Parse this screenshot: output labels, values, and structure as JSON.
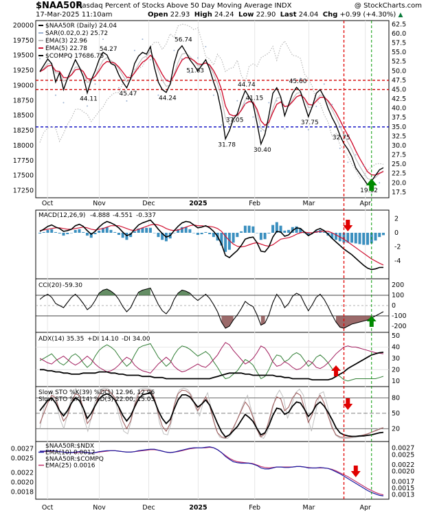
{
  "header": {
    "ticker": "$NAA50R",
    "description": "Nasdaq Percent of Stocks Above 50 Day Moving Average INDX",
    "watermark": "@ StockCharts.com",
    "date": "17-Mar-2025 11:10am",
    "open_label": "Open",
    "open": "22.93",
    "high_label": "High",
    "high": "24.24",
    "low_label": "Low",
    "low": "22.90",
    "last_label": "Last",
    "last": "24.04",
    "chg_label": "Chg",
    "chg": "+0.99 (+4.30%)",
    "chg_icon": "up-triangle-icon"
  },
  "colors": {
    "price": "#000000",
    "sar": "#9ab0d0",
    "ema3": "#c0c0c0",
    "ema5": "#d01030",
    "compq": "#b8b8b8",
    "hline_red": "#d00000",
    "hline_blue": "#0000c0",
    "macd_hist": "#3a8fbf",
    "cci_fill": "#8a5050",
    "cci_pos": "#4a7a4a",
    "di_plus": "#2e7d32",
    "di_minus": "#a0185a",
    "adx": "#000000",
    "stoch_k": "#a06060",
    "ratio_ndx": "#1a1aa0",
    "ratio_compq": "#c0306a",
    "vline_red": "#e00000",
    "vline_green": "#009900",
    "arrow_red": "#e00000",
    "arrow_green": "#008800"
  },
  "chart_data": [
    {
      "type": "line",
      "name": "price",
      "legend": [
        "$NAA50R (Daily) 24.04",
        "SAR(0.02,0.2) 25.72",
        "EMA(3) 22.96",
        "EMA(5) 22.78",
        "$COMPQ 17686.75"
      ],
      "right_ticks": [
        "62.5",
        "60.0",
        "57.5",
        "55.0",
        "52.5",
        "50.0",
        "47.5",
        "45.0",
        "42.5",
        "40.0",
        "37.5",
        "35.0",
        "32.5",
        "30.0",
        "27.5",
        "25.0",
        "22.5",
        "20.0",
        "17.5"
      ],
      "left_ticks": [
        "20000",
        "19750",
        "19500",
        "19250",
        "19000",
        "18750",
        "18500",
        "18250",
        "18000",
        "17750",
        "17500",
        "17250"
      ],
      "ylim": [
        16.0,
        63.5
      ],
      "compq_ylim": [
        17130,
        20080
      ],
      "hlines": [
        47.5,
        45.0,
        35.0
      ],
      "price_values": [
        49.8,
        51.5,
        53.2,
        52.0,
        47.0,
        49.5,
        45.0,
        48.0,
        50.5,
        53.0,
        51.0,
        48.5,
        44.11,
        47.5,
        50.0,
        53.0,
        55.0,
        54.27,
        52.0,
        51.5,
        49.0,
        47.0,
        45.47,
        48.0,
        52.0,
        54.0,
        55.0,
        54.5,
        56.5,
        51.0,
        47.0,
        45.0,
        44.24,
        46.5,
        52.0,
        55.5,
        56.74,
        55.0,
        53.0,
        51.63,
        50.0,
        51.5,
        53.0,
        50.5,
        47.0,
        44.0,
        39.0,
        31.78,
        34.0,
        37.05,
        38.5,
        42.0,
        44.74,
        43.0,
        41.15,
        36.0,
        30.4,
        33.0,
        38.0,
        44.0,
        45.5,
        43.0,
        38.0,
        41.0,
        44.0,
        45.6,
        44.5,
        41.0,
        37.75,
        40.5,
        44.0,
        45.0,
        43.0,
        40.0,
        37.5,
        35.5,
        32.75,
        30.5,
        29.0,
        27.0,
        24.0,
        22.5,
        21.0,
        19.5,
        20.5,
        22.0,
        23.5,
        24.04
      ],
      "compq_values": [
        18050,
        18220,
        18290,
        18320,
        18290,
        18070,
        18200,
        18350,
        18460,
        18600,
        18610,
        18560,
        18520,
        18400,
        18480,
        18570,
        18640,
        18760,
        18830,
        18880,
        18880,
        19040,
        19120,
        19180,
        19280,
        19280,
        19320,
        19450,
        19640,
        19720,
        19720,
        19600,
        19690,
        19860,
        19800,
        19990,
        20020,
        20010,
        19980,
        19930,
        19960,
        19740,
        19480,
        19440,
        19340,
        19520,
        19430,
        19230,
        19280,
        19300,
        19420,
        19170,
        19050,
        19320,
        19360,
        19320,
        19460,
        19500,
        19540,
        19650,
        19420,
        19650,
        19740,
        19620,
        19500,
        19490,
        19450,
        19190,
        19110,
        18980,
        18750,
        18700,
        18510,
        18390,
        18150,
        18200,
        18010,
        17930,
        17820,
        17690,
        17590,
        17460,
        17490,
        17590,
        17640,
        17690,
        17700,
        17687
      ],
      "annotations": [
        "44.11",
        "54.27",
        "45.47",
        "56.74",
        "44.24",
        "51.63",
        "31.78",
        "37.05",
        "44.74",
        "41.15",
        "30.40",
        "45.60",
        "37.75",
        "32.75",
        "19.32"
      ],
      "months": [
        "Oct",
        "Nov",
        "Dec",
        "2025",
        "Feb",
        "Mar",
        "Apr"
      ]
    },
    {
      "type": "line",
      "name": "macd",
      "legend_name": "MACD(12,26,9)",
      "macd_value": "-4.888",
      "signal_value": "-4.551",
      "hist_value": "-0.337",
      "right_ticks": [
        "2",
        "0",
        "-2",
        "-4"
      ],
      "ylim": [
        -6.5,
        3.2
      ],
      "macd": [
        0.2,
        0.5,
        0.9,
        1.1,
        0.8,
        0.6,
        0.2,
        0.3,
        0.5,
        1.0,
        1.2,
        0.9,
        0.3,
        -0.2,
        0.2,
        0.8,
        1.3,
        1.6,
        1.4,
        1.1,
        0.7,
        0.1,
        -0.4,
        -0.2,
        0.5,
        1.1,
        1.4,
        1.6,
        1.8,
        1.2,
        0.5,
        -0.1,
        -0.6,
        -0.4,
        0.3,
        0.9,
        1.4,
        1.6,
        1.5,
        1.1,
        0.7,
        0.8,
        1.0,
        0.7,
        0.2,
        -0.5,
        -1.6,
        -3.2,
        -3.5,
        -3.0,
        -2.5,
        -1.8,
        -0.9,
        -0.7,
        -0.6,
        -1.4,
        -2.6,
        -2.7,
        -2.0,
        -0.6,
        0.2,
        0.1,
        -0.5,
        -0.3,
        0.3,
        0.7,
        0.6,
        0.1,
        -0.4,
        -0.1,
        0.4,
        0.6,
        0.3,
        -0.2,
        -0.8,
        -1.3,
        -1.8,
        -2.3,
        -2.7,
        -3.1,
        -3.6,
        -4.1,
        -4.6,
        -5.0,
        -5.2,
        -5.1,
        -4.9,
        -4.888
      ],
      "signal": [
        0.3,
        0.4,
        0.5,
        0.6,
        0.7,
        0.7,
        0.6,
        0.5,
        0.5,
        0.6,
        0.7,
        0.8,
        0.7,
        0.5,
        0.4,
        0.5,
        0.6,
        0.8,
        1.0,
        1.0,
        1.0,
        0.8,
        0.6,
        0.4,
        0.3,
        0.5,
        0.7,
        0.9,
        1.1,
        1.2,
        1.1,
        0.9,
        0.6,
        0.4,
        0.3,
        0.4,
        0.6,
        0.8,
        1.0,
        1.1,
        1.0,
        1.0,
        0.9,
        0.9,
        0.8,
        0.6,
        0.2,
        -0.5,
        -1.1,
        -1.6,
        -1.9,
        -2.0,
        -1.9,
        -1.7,
        -1.5,
        -1.4,
        -1.6,
        -1.8,
        -1.9,
        -1.7,
        -1.3,
        -0.9,
        -0.8,
        -0.7,
        -0.5,
        -0.2,
        0.0,
        0.1,
        0.0,
        0.0,
        0.1,
        0.2,
        0.2,
        0.2,
        0.0,
        -0.3,
        -0.6,
        -0.9,
        -1.3,
        -1.7,
        -2.1,
        -2.5,
        -2.9,
        -3.3,
        -3.7,
        -4.0,
        -4.3,
        -4.551
      ]
    },
    {
      "type": "line",
      "name": "cci",
      "legend_name": "CCI(20)",
      "value": "-59.30",
      "right_ticks": [
        "200",
        "100",
        "0",
        "-100",
        "-200"
      ],
      "ylim": [
        -260,
        260
      ],
      "values": [
        60,
        90,
        110,
        80,
        20,
        0,
        -20,
        30,
        80,
        110,
        70,
        20,
        -40,
        -10,
        50,
        120,
        150,
        160,
        140,
        110,
        60,
        -10,
        -60,
        -20,
        60,
        130,
        150,
        160,
        170,
        90,
        10,
        -50,
        -80,
        -30,
        60,
        120,
        150,
        140,
        120,
        80,
        50,
        80,
        110,
        70,
        10,
        -60,
        -160,
        -220,
        -200,
        -140,
        -90,
        -30,
        40,
        10,
        -10,
        -90,
        -190,
        -170,
        -90,
        30,
        110,
        60,
        -20,
        20,
        90,
        120,
        100,
        20,
        -50,
        10,
        80,
        110,
        60,
        -10,
        -90,
        -160,
        -210,
        -220,
        -200,
        -180,
        -170,
        -160,
        -150,
        -140,
        -120,
        -100,
        -80,
        -59.3
      ]
    },
    {
      "type": "line",
      "name": "adx",
      "legend": [
        "ADX(14) 35.35",
        "+DI 14.10",
        "-DI 34.00"
      ],
      "right_ticks": [
        "50",
        "40",
        "30",
        "20",
        "10"
      ],
      "ylim": [
        5,
        53
      ],
      "adx": [
        20,
        20,
        19,
        19,
        18,
        18,
        17,
        17,
        16,
        16,
        16,
        17,
        17,
        17,
        17,
        18,
        18,
        18,
        17,
        17,
        16,
        16,
        15,
        15,
        15,
        15,
        14,
        14,
        14,
        13,
        13,
        13,
        12,
        12,
        12,
        12,
        12,
        12,
        12,
        12,
        12,
        12,
        12,
        12,
        13,
        14,
        15,
        16,
        17,
        17,
        17,
        17,
        16,
        16,
        15,
        15,
        15,
        15,
        15,
        15,
        14,
        14,
        13,
        13,
        12,
        12,
        12,
        12,
        12,
        11,
        11,
        11,
        11,
        11,
        12,
        14,
        16,
        18,
        21,
        23,
        25,
        27,
        29,
        31,
        33,
        34,
        35,
        35.35
      ],
      "di_plus": [
        28,
        30,
        32,
        34,
        30,
        26,
        24,
        27,
        32,
        34,
        31,
        26,
        22,
        25,
        32,
        37,
        40,
        42,
        40,
        37,
        32,
        27,
        23,
        26,
        33,
        39,
        41,
        42,
        43,
        37,
        31,
        27,
        23,
        26,
        33,
        38,
        41,
        40,
        38,
        35,
        32,
        34,
        36,
        33,
        27,
        22,
        16,
        12,
        13,
        16,
        19,
        24,
        29,
        27,
        24,
        18,
        12,
        14,
        20,
        28,
        33,
        32,
        27,
        29,
        33,
        35,
        33,
        28,
        23,
        26,
        31,
        33,
        30,
        26,
        21,
        17,
        14,
        11,
        10,
        11,
        12,
        12,
        12,
        12,
        12,
        12,
        13,
        14.1
      ],
      "di_minus": [
        30,
        28,
        26,
        25,
        28,
        30,
        32,
        29,
        26,
        24,
        26,
        29,
        32,
        29,
        25,
        22,
        20,
        18,
        19,
        21,
        24,
        28,
        31,
        29,
        24,
        21,
        19,
        18,
        17,
        21,
        25,
        28,
        31,
        28,
        23,
        20,
        18,
        19,
        21,
        23,
        25,
        23,
        22,
        25,
        29,
        33,
        39,
        44,
        42,
        37,
        33,
        29,
        25,
        27,
        30,
        35,
        41,
        39,
        34,
        27,
        23,
        24,
        27,
        25,
        22,
        20,
        21,
        24,
        28,
        26,
        22,
        21,
        23,
        26,
        30,
        34,
        37,
        40,
        41,
        40,
        40,
        39,
        38,
        37,
        36,
        35,
        34.5,
        34.0
      ]
    },
    {
      "type": "line",
      "name": "stoch",
      "legend": [
        "Slow STO %K(39) %D(1) 12.96, 12.96",
        "Slow STO %K(14) %D(3) 22.00, 15.03"
      ],
      "right_ticks": [
        "80",
        "50",
        "20"
      ],
      "ylim": [
        -5,
        102
      ],
      "k39": [
        55,
        65,
        75,
        80,
        70,
        55,
        45,
        55,
        70,
        80,
        75,
        60,
        40,
        50,
        65,
        78,
        85,
        88,
        84,
        76,
        62,
        46,
        35,
        45,
        62,
        78,
        86,
        88,
        90,
        75,
        55,
        40,
        30,
        38,
        58,
        76,
        86,
        86,
        82,
        72,
        62,
        68,
        76,
        66,
        48,
        30,
        14,
        4,
        8,
        16,
        24,
        36,
        48,
        42,
        34,
        20,
        8,
        12,
        26,
        46,
        60,
        58,
        48,
        52,
        64,
        72,
        70,
        58,
        44,
        52,
        66,
        72,
        64,
        52,
        38,
        22,
        12,
        8,
        6,
        5,
        5,
        6,
        6,
        7,
        8,
        10,
        12,
        12.96
      ],
      "k14_slow": [
        30,
        50,
        70,
        85,
        80,
        55,
        35,
        45,
        70,
        88,
        85,
        60,
        30,
        40,
        65,
        85,
        95,
        95,
        90,
        80,
        60,
        35,
        20,
        35,
        65,
        88,
        95,
        95,
        95,
        80,
        50,
        25,
        15,
        30,
        65,
        88,
        95,
        94,
        88,
        72,
        55,
        68,
        82,
        65,
        35,
        12,
        4,
        2,
        8,
        22,
        38,
        55,
        72,
        62,
        42,
        18,
        4,
        10,
        35,
        65,
        82,
        78,
        55,
        62,
        80,
        90,
        85,
        60,
        32,
        48,
        75,
        85,
        70,
        45,
        22,
        8,
        4,
        3,
        3,
        4,
        5,
        6,
        8,
        10,
        13,
        16,
        19,
        22
      ],
      "k14_fast": [
        20,
        60,
        85,
        95,
        75,
        40,
        20,
        50,
        85,
        98,
        80,
        40,
        15,
        45,
        80,
        96,
        99,
        98,
        90,
        70,
        40,
        15,
        10,
        40,
        80,
        97,
        99,
        98,
        96,
        70,
        30,
        10,
        8,
        35,
        80,
        96,
        99,
        96,
        85,
        60,
        45,
        75,
        90,
        55,
        20,
        4,
        1,
        1,
        10,
        30,
        50,
        70,
        85,
        55,
        30,
        5,
        1,
        15,
        50,
        82,
        95,
        80,
        40,
        65,
        90,
        97,
        85,
        45,
        15,
        50,
        88,
        92,
        65,
        30,
        8,
        2,
        1,
        1,
        2,
        3,
        4,
        6,
        9,
        13,
        17,
        21,
        22
      ]
    },
    {
      "type": "line",
      "name": "ratio",
      "legend": [
        "$NAA50R:$NDX",
        "EMA(10) 0.0012",
        "$NAA50R:$COMPQ",
        "EMA(25) 0.0016"
      ],
      "left_ticks": [
        "0.0027",
        "0.0025",
        "0.0022",
        "0.0020",
        "0.0018"
      ],
      "right_ticks": [
        "0.0027",
        "0.0025",
        "0.0022",
        "0.0020",
        "0.0017",
        "0.0015",
        "0.0013"
      ],
      "left_ylim": [
        0.00165,
        0.00285
      ],
      "right_ylim": [
        0.00117,
        0.0029
      ],
      "ndx_values": [
        0.00265,
        0.00265,
        0.00265,
        0.00266,
        0.00265,
        0.00264,
        0.00263,
        0.00262,
        0.00262,
        0.00263,
        0.00264,
        0.00263,
        0.00262,
        0.00261,
        0.00262,
        0.00264,
        0.00265,
        0.00266,
        0.00266,
        0.00266,
        0.00265,
        0.00264,
        0.00263,
        0.00263,
        0.00264,
        0.00266,
        0.00267,
        0.00268,
        0.00269,
        0.00269,
        0.00267,
        0.00265,
        0.00263,
        0.00262,
        0.00263,
        0.00265,
        0.00267,
        0.00269,
        0.00271,
        0.00272,
        0.00272,
        0.00272,
        0.00273,
        0.00274,
        0.00272,
        0.00268,
        0.00262,
        0.00254,
        0.00248,
        0.00243,
        0.00241,
        0.0024,
        0.0024,
        0.0024,
        0.00238,
        0.00235,
        0.0023,
        0.00228,
        0.00228,
        0.0023,
        0.00232,
        0.00232,
        0.00231,
        0.00231,
        0.00232,
        0.00233,
        0.00233,
        0.00232,
        0.0023,
        0.0023,
        0.0023,
        0.00231,
        0.0023,
        0.00229,
        0.00226,
        0.00222,
        0.00218,
        0.00213,
        0.00208,
        0.00203,
        0.00198,
        0.00193,
        0.00188,
        0.00183,
        0.00179,
        0.00176,
        0.00173,
        0.00172
      ],
      "compq_values": [
        0.00263,
        0.00264,
        0.00264,
        0.00265,
        0.00265,
        0.00264,
        0.00263,
        0.00262,
        0.00262,
        0.00262,
        0.00263,
        0.00263,
        0.00262,
        0.00261,
        0.00262,
        0.00263,
        0.00264,
        0.00265,
        0.00266,
        0.00266,
        0.00265,
        0.00264,
        0.00263,
        0.00263,
        0.00264,
        0.00265,
        0.00266,
        0.00267,
        0.00268,
        0.00268,
        0.00267,
        0.00265,
        0.00263,
        0.00262,
        0.00263,
        0.00264,
        0.00266,
        0.00268,
        0.0027,
        0.00271,
        0.00272,
        0.00272,
        0.00272,
        0.00273,
        0.00272,
        0.00268,
        0.00262,
        0.00256,
        0.0025,
        0.00246,
        0.00243,
        0.00242,
        0.00241,
        0.0024,
        0.00239,
        0.00236,
        0.00233,
        0.00231,
        0.0023,
        0.00231,
        0.00232,
        0.00232,
        0.00232,
        0.00232,
        0.00232,
        0.00233,
        0.00233,
        0.00232,
        0.00231,
        0.0023,
        0.0023,
        0.0023,
        0.0023,
        0.00229,
        0.00227,
        0.00224,
        0.0022,
        0.00216,
        0.00212,
        0.00207,
        0.00202,
        0.00197,
        0.00192,
        0.00187,
        0.00183,
        0.00179,
        0.00176,
        0.00174
      ]
    }
  ]
}
